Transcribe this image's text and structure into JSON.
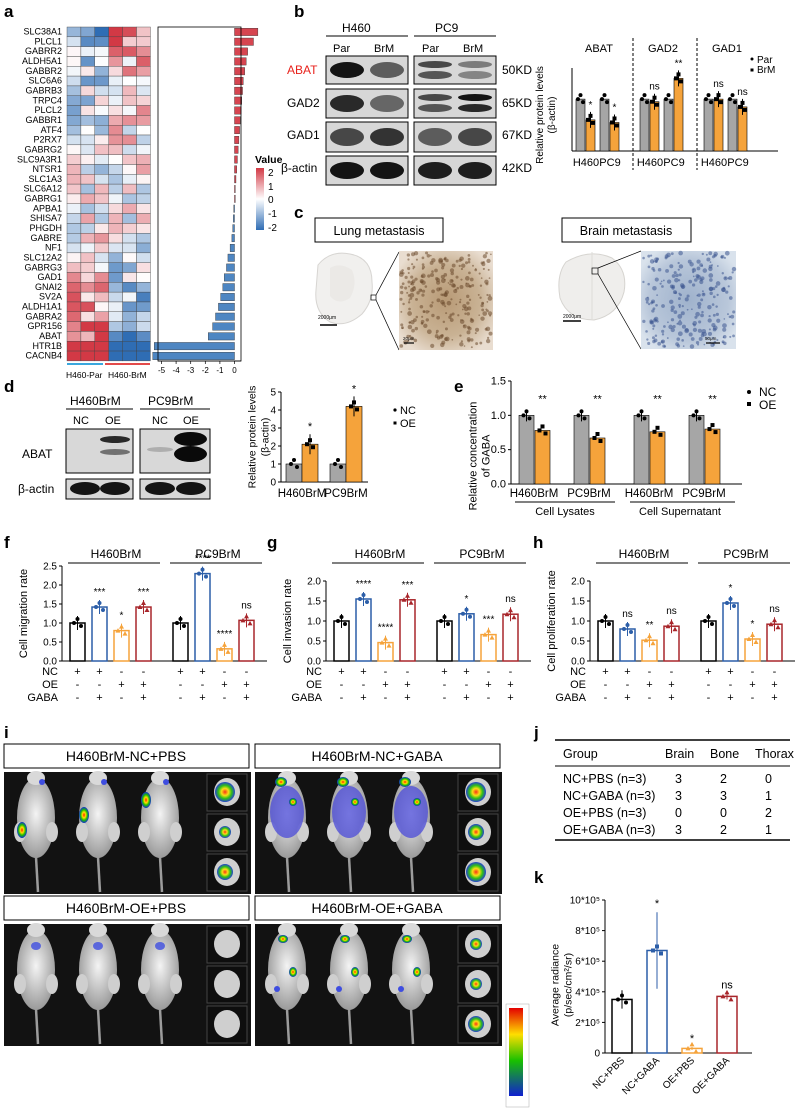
{
  "panels": {
    "a": {
      "label": "a",
      "genes": [
        "SLC38A1",
        "PLCL1",
        "GABRR2",
        "ALDH5A1",
        "GABBR2",
        "SLC6A6",
        "GABRB3",
        "TRPC4",
        "PLCL2",
        "GABBR1",
        "ATF4",
        "P2RX7",
        "GABRG2",
        "SLC9A3R1",
        "NTSR1",
        "SLC1A3",
        "SLC6A12",
        "GABRG1",
        "APBA1",
        "SHISA7",
        "PHGDH",
        "GABRE",
        "NF1",
        "SLC12A2",
        "GABRG3",
        "GAD1",
        "GNAI2",
        "SV2A",
        "ALDH1A1",
        "GABRA2",
        "GPR156",
        "ABAT",
        "HTR1B",
        "CACNB4"
      ],
      "fold": [
        1.6,
        1.3,
        0.9,
        0.8,
        0.7,
        0.6,
        0.55,
        0.5,
        0.45,
        0.4,
        0.35,
        0.3,
        0.25,
        0.2,
        0.15,
        0.1,
        0.05,
        0.03,
        -0.05,
        -0.08,
        -0.12,
        -0.18,
        -0.3,
        -0.45,
        -0.55,
        -0.7,
        -0.8,
        -0.95,
        -1.1,
        -1.3,
        -1.5,
        -1.8,
        -5.5,
        -5.6
      ],
      "x_ticks": [
        "-5",
        "-4",
        "-3",
        "-2",
        "-1",
        "0"
      ],
      "group_labels": [
        "H460-Par",
        "H460-BrM"
      ],
      "legend_title": "Value",
      "legend_ticks": [
        "2",
        "1",
        "0",
        "-1",
        "-2"
      ]
    },
    "b": {
      "label": "b",
      "cell_lines": [
        "H460",
        "PC9"
      ],
      "lanes": [
        "Par",
        "BrM",
        "Par",
        "BrM"
      ],
      "bands": [
        "ABAT",
        "GAD2",
        "GAD1",
        "β-actin"
      ],
      "sizes": [
        "50KD",
        "65KD",
        "67KD",
        "42KD"
      ],
      "highlight_color": "#e8221c",
      "ylabel": "Relative protein levels\n(β-actin)",
      "groups": [
        "ABAT",
        "GAD2",
        "GAD1"
      ],
      "xticks": [
        "H460",
        "PC9",
        "H460",
        "PC9",
        "H460",
        "PC9"
      ],
      "legend": [
        "Par",
        "BrM"
      ],
      "sig": [
        "*",
        "*",
        "ns",
        "**",
        "ns",
        "ns"
      ]
    },
    "c": {
      "label": "c",
      "titles": [
        "Lung metastasis",
        "Brain metastasis"
      ],
      "scale_labels": [
        "2000μm",
        "20μm",
        "2000μm",
        "50μm"
      ]
    },
    "d": {
      "label": "d",
      "cell_lines": [
        "H460BrM",
        "PC9BrM"
      ],
      "lanes": [
        "NC",
        "OE"
      ],
      "bands": [
        "ABAT",
        "β-actin"
      ],
      "ylabel": "Relative protein levels\n(β-actin)",
      "xticks": [
        "H460BrM",
        "PC9BrM"
      ],
      "legend": [
        "NC",
        "OE"
      ],
      "sig": [
        "*",
        "*"
      ]
    },
    "e": {
      "label": "e",
      "ylabel": "Relative concentration\nof GABA",
      "xticks": [
        "H460BrM",
        "PC9BrM",
        "H460BrM",
        "PC9BrM"
      ],
      "groups": [
        "Cell Lysates",
        "Cell Supernatant"
      ],
      "legend": [
        "NC",
        "OE"
      ],
      "sig": [
        "**",
        "**",
        "**",
        "**"
      ]
    },
    "f": {
      "label": "f",
      "ylabel": "Cell migration rate",
      "lines": [
        "H460BrM",
        "PC9BrM"
      ],
      "sig": [
        "",
        "***",
        "*",
        "***",
        "",
        "****",
        "****",
        "ns"
      ]
    },
    "g": {
      "label": "g",
      "ylabel": "Cell invasion rate",
      "lines": [
        "H460BrM",
        "PC9BrM"
      ],
      "sig": [
        "",
        "****",
        "****",
        "***",
        "",
        "*",
        "***",
        "ns"
      ]
    },
    "h": {
      "label": "h",
      "ylabel": "Cell proliferation rate",
      "lines": [
        "H460BrM",
        "PC9BrM"
      ],
      "sig": [
        "",
        "ns",
        "**",
        "ns",
        "",
        "*",
        "*",
        "ns"
      ]
    },
    "treat_rows": [
      "NC",
      "OE",
      "GABA"
    ],
    "treat_signs": [
      [
        "+",
        "+",
        "-",
        "-"
      ],
      [
        "-",
        "-",
        "+",
        "+"
      ],
      [
        "-",
        "+",
        "-",
        "+"
      ]
    ],
    "i": {
      "label": "i",
      "groups": [
        "H460BrM-NC+PBS",
        "H460BrM-NC+GABA",
        "H460BrM-OE+PBS",
        "H460BrM-OE+GABA"
      ]
    },
    "j": {
      "label": "j",
      "headers": [
        "Group",
        "Brain",
        "Bone",
        "Thorax"
      ],
      "rows": [
        [
          "NC+PBS (n=3)",
          "3",
          "2",
          "0"
        ],
        [
          "NC+GABA (n=3)",
          "3",
          "3",
          "1"
        ],
        [
          "OE+PBS (n=3)",
          "0",
          "0",
          "2"
        ],
        [
          "OE+GABA (n=3)",
          "3",
          "2",
          "1"
        ]
      ]
    },
    "k": {
      "label": "k",
      "ylabel": "Average radiance\n(p/sec/cm²/sr)",
      "yticks": [
        "0",
        "2*10⁵",
        "4*10⁵",
        "6*10⁵",
        "8*10⁵",
        "10*10⁵"
      ],
      "sig": [
        "",
        "*",
        "*",
        "ns"
      ]
    }
  },
  "colors": {
    "grey": "#a6a6a6",
    "orange": "#f5a33b",
    "blue": "#2c5ea8",
    "red": "#a8262b",
    "black": "#000000"
  },
  "chart_data": [
    {
      "panel": "b",
      "type": "bar",
      "categories": [
        "ABAT H460",
        "ABAT PC9",
        "GAD2 H460",
        "GAD2 PC9",
        "GAD1 H460",
        "GAD1 PC9"
      ],
      "series": [
        {
          "name": "Par",
          "values": [
            1,
            1,
            1,
            1,
            1,
            1
          ]
        },
        {
          "name": "BrM",
          "values": [
            0.6,
            0.55,
            0.95,
            1.4,
            1.0,
            0.85
          ]
        }
      ],
      "ylim": [
        0,
        1.6
      ]
    },
    {
      "panel": "d",
      "type": "bar",
      "categories": [
        "H460BrM",
        "PC9BrM"
      ],
      "series": [
        {
          "name": "NC",
          "values": [
            1,
            1
          ]
        },
        {
          "name": "OE",
          "values": [
            2.1,
            4.2
          ]
        }
      ],
      "yticks": [
        "0",
        "1",
        "2",
        "3",
        "4",
        "5"
      ],
      "ylim": [
        0,
        5
      ]
    },
    {
      "panel": "e",
      "type": "bar",
      "categories": [
        "H460BrM",
        "PC9BrM",
        "H460BrM",
        "PC9BrM"
      ],
      "series": [
        {
          "name": "NC",
          "values": [
            1.0,
            1.0,
            1.0,
            1.0
          ]
        },
        {
          "name": "OE",
          "values": [
            0.78,
            0.67,
            0.76,
            0.8
          ]
        }
      ],
      "yticks": [
        "0.0",
        "0.5",
        "1.0",
        "1.5"
      ],
      "ylim": [
        0,
        1.5
      ]
    },
    {
      "panel": "f",
      "type": "bar",
      "categories": [
        "H460BrM NC",
        "H460BrM NC+GABA",
        "H460BrM OE",
        "H460BrM OE+GABA",
        "PC9BrM NC",
        "PC9BrM NC+GABA",
        "PC9BrM OE",
        "PC9BrM OE+GABA"
      ],
      "values": [
        1.0,
        1.42,
        0.8,
        1.42,
        1.0,
        2.3,
        0.32,
        1.07
      ],
      "yticks": [
        "0.0",
        "0.5",
        "1.0",
        "1.5",
        "2.0",
        "2.5"
      ],
      "ylim": [
        0,
        2.5
      ]
    },
    {
      "panel": "g",
      "type": "bar",
      "categories": [
        "H460BrM NC",
        "H460BrM NC+GABA",
        "H460BrM OE",
        "H460BrM OE+GABA",
        "PC9BrM NC",
        "PC9BrM NC+GABA",
        "PC9BrM OE",
        "PC9BrM OE+GABA"
      ],
      "values": [
        1.0,
        1.55,
        0.46,
        1.53,
        1.0,
        1.18,
        0.66,
        1.17
      ],
      "yticks": [
        "0.0",
        "0.5",
        "1.0",
        "1.5",
        "2.0"
      ],
      "ylim": [
        0,
        2.0
      ]
    },
    {
      "panel": "h",
      "type": "bar",
      "categories": [
        "H460BrM NC",
        "H460BrM NC+GABA",
        "H460BrM OE",
        "H460BrM OE+GABA",
        "PC9BrM NC",
        "PC9BrM NC+GABA",
        "PC9BrM OE",
        "PC9BrM OE+GABA"
      ],
      "values": [
        1.0,
        0.8,
        0.52,
        0.87,
        1.0,
        1.45,
        0.55,
        0.92
      ],
      "yticks": [
        "0.0",
        "0.5",
        "1.0",
        "1.5",
        "2.0"
      ],
      "ylim": [
        0,
        2.0
      ]
    },
    {
      "panel": "k",
      "type": "bar",
      "categories": [
        "NC+PBS",
        "NC+GABA",
        "OE+PBS",
        "OE+GABA"
      ],
      "values": [
        350000,
        670000,
        30000,
        370000
      ],
      "ylim": [
        0,
        1000000
      ]
    }
  ]
}
